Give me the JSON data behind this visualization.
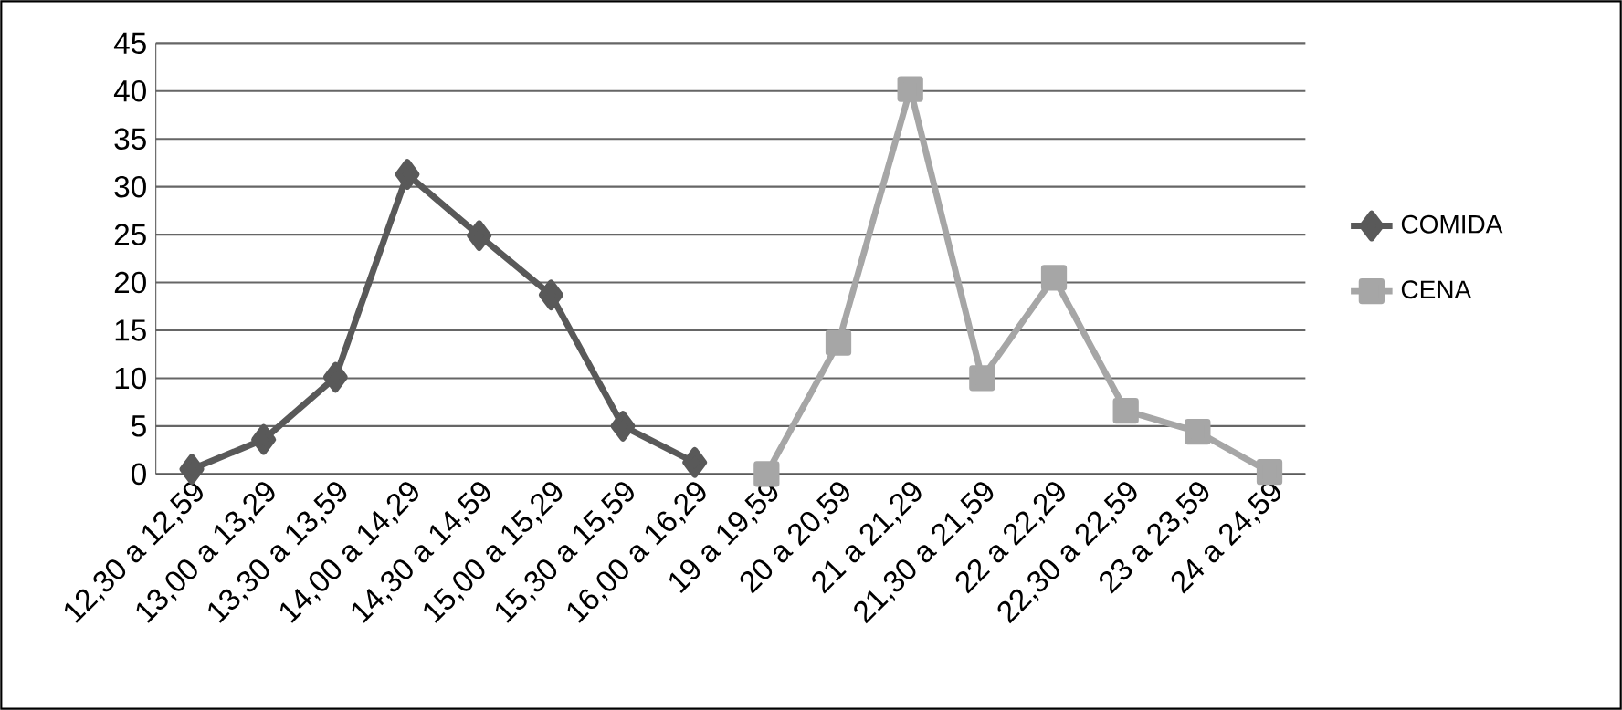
{
  "chart_data": {
    "type": "line",
    "categories": [
      "12,30 a 12,59",
      "13,00 a 13,29",
      "13,30 a 13,59",
      "14,00 a 14,29",
      "14,30 a 14,59",
      "15,00 a 15,29",
      "15,30 a 15,59",
      "16,00 a 16,29",
      "19 a 19,59",
      "20 a 20,59",
      "21 a 21,29",
      "21,30 a 21,59",
      "22 a 22,29",
      "22,30 a 22,59",
      "23 a 23,59",
      "24 a 24,59"
    ],
    "series": [
      {
        "name": "COMIDA",
        "color": "#595959",
        "marker": "diamond",
        "values": [
          0.5,
          3.6,
          10.1,
          31.3,
          24.9,
          18.7,
          5,
          1.2,
          null,
          null,
          null,
          null,
          null,
          null,
          null,
          null
        ]
      },
      {
        "name": "CENA",
        "color": "#a6a6a6",
        "marker": "square",
        "values": [
          null,
          null,
          null,
          null,
          null,
          null,
          null,
          null,
          0,
          13.7,
          40.2,
          10,
          20.5,
          6.6,
          4.4,
          0.2
        ]
      }
    ],
    "ylim": [
      0,
      45
    ],
    "yticks": [
      0,
      5,
      10,
      15,
      20,
      25,
      30,
      35,
      40,
      45
    ],
    "grid": "y",
    "legend": "right",
    "line_style": "solid"
  }
}
